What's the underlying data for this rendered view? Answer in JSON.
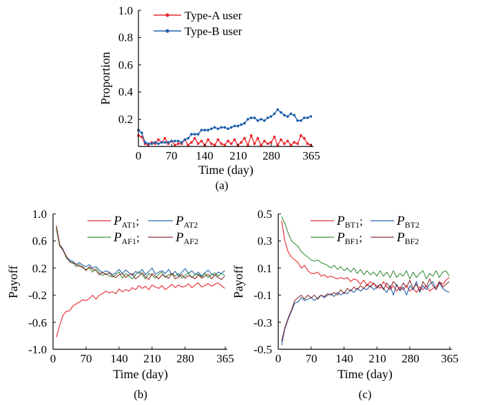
{
  "chart_data": [
    {
      "type": "line",
      "caption": "(a)",
      "xlabel": "Time (day)",
      "ylabel": "Proportion",
      "xlim": [
        0,
        365
      ],
      "ylim": [
        0,
        1.0
      ],
      "x_ticks": [
        "0",
        "70",
        "140",
        "210",
        "280",
        "365"
      ],
      "y_ticks": [
        "0.2",
        "0.4",
        "0.6",
        "0.8",
        "1.0"
      ],
      "legend_position": "top-center",
      "grid": false,
      "x": [
        0,
        7,
        14,
        21,
        28,
        35,
        42,
        49,
        56,
        63,
        70,
        77,
        84,
        91,
        98,
        105,
        112,
        119,
        126,
        133,
        140,
        147,
        154,
        161,
        168,
        175,
        182,
        189,
        196,
        203,
        210,
        217,
        224,
        231,
        238,
        245,
        252,
        259,
        266,
        273,
        280,
        287,
        294,
        301,
        308,
        315,
        322,
        329,
        336,
        343,
        350,
        357,
        364
      ],
      "series": [
        {
          "name": "Type-A user",
          "color": "#e8262b",
          "marker": "dot",
          "values": [
            0.08,
            0.07,
            0.02,
            0.01,
            0.03,
            0.02,
            0.05,
            0.03,
            0.06,
            0.02,
            0.04,
            0.01,
            0.02,
            0.02,
            0.05,
            0.01,
            0.03,
            0.06,
            0.02,
            0.04,
            0.01,
            0.05,
            0.02,
            0.01,
            0.05,
            0.02,
            0.01,
            0.04,
            0.02,
            0.05,
            0.01,
            0.03,
            0.06,
            0.01,
            0.08,
            0.02,
            0.06,
            0.01,
            0.04,
            0.02,
            0.03,
            0.07,
            0.01,
            0.05,
            0.02,
            0.04,
            0.01,
            0.03,
            0.02,
            0.08,
            0.06,
            0.02,
            0.01
          ]
        },
        {
          "name": "Type-B user",
          "color": "#1f5fad",
          "marker": "dot",
          "values": [
            0.12,
            0.1,
            0.03,
            0.02,
            0.02,
            0.03,
            0.02,
            0.03,
            0.03,
            0.03,
            0.04,
            0.04,
            0.04,
            0.03,
            0.05,
            0.06,
            0.09,
            0.09,
            0.09,
            0.12,
            0.12,
            0.12,
            0.13,
            0.14,
            0.13,
            0.14,
            0.14,
            0.13,
            0.14,
            0.15,
            0.15,
            0.16,
            0.17,
            0.2,
            0.21,
            0.21,
            0.19,
            0.2,
            0.19,
            0.21,
            0.22,
            0.24,
            0.27,
            0.25,
            0.23,
            0.22,
            0.24,
            0.23,
            0.19,
            0.19,
            0.21,
            0.21,
            0.22
          ]
        }
      ]
    },
    {
      "type": "line",
      "caption": "(b)",
      "xlabel": "Time (day)",
      "ylabel": "Payoff",
      "xlim": [
        0,
        365
      ],
      "ylim": [
        -1.0,
        1.0
      ],
      "x_ticks": [
        "0",
        "70",
        "140",
        "210",
        "280",
        "365"
      ],
      "y_ticks": [
        "-1.0",
        "-0.6",
        "-0.2",
        "0.2",
        "0.6",
        "1.0"
      ],
      "legend_position": "top-right",
      "grid": false,
      "x": [
        7,
        14,
        21,
        28,
        35,
        42,
        49,
        56,
        63,
        70,
        77,
        84,
        91,
        98,
        105,
        112,
        119,
        126,
        133,
        140,
        147,
        154,
        161,
        168,
        175,
        182,
        189,
        196,
        203,
        210,
        217,
        224,
        231,
        238,
        245,
        252,
        259,
        266,
        273,
        280,
        287,
        294,
        301,
        308,
        315,
        322,
        329,
        336,
        343,
        350,
        357,
        364
      ],
      "series": [
        {
          "name": "AT1",
          "color": "#e8262b",
          "values": [
            -0.82,
            -0.65,
            -0.5,
            -0.44,
            -0.43,
            -0.36,
            -0.33,
            -0.3,
            -0.27,
            -0.28,
            -0.25,
            -0.2,
            -0.26,
            -0.2,
            -0.18,
            -0.14,
            -0.17,
            -0.15,
            -0.18,
            -0.11,
            -0.15,
            -0.12,
            -0.14,
            -0.09,
            -0.12,
            -0.06,
            -0.1,
            -0.07,
            -0.12,
            -0.05,
            -0.08,
            -0.1,
            -0.06,
            -0.12,
            -0.08,
            -0.04,
            -0.09,
            -0.05,
            -0.08,
            -0.07,
            -0.03,
            -0.09,
            -0.05,
            -0.02,
            -0.08,
            -0.06,
            -0.03,
            -0.07,
            -0.04,
            -0.02,
            -0.06,
            -0.1
          ]
        },
        {
          "name": "AT2",
          "color": "#1f5fad",
          "values": [
            0.8,
            0.55,
            0.48,
            0.37,
            0.32,
            0.3,
            0.25,
            0.28,
            0.24,
            0.22,
            0.25,
            0.2,
            0.22,
            0.17,
            0.13,
            0.16,
            0.14,
            0.1,
            0.13,
            0.18,
            0.12,
            0.17,
            0.13,
            0.09,
            0.15,
            0.12,
            0.18,
            0.1,
            0.15,
            0.2,
            0.11,
            0.14,
            0.16,
            0.12,
            0.18,
            0.1,
            0.15,
            0.08,
            0.14,
            0.19,
            0.12,
            0.16,
            0.1,
            0.14,
            0.08,
            0.13,
            0.17,
            0.11,
            0.09,
            0.14,
            0.12,
            0.16
          ]
        },
        {
          "name": "AF1",
          "color": "#3a8c3a",
          "values": [
            0.78,
            0.52,
            0.47,
            0.35,
            0.3,
            0.28,
            0.22,
            0.25,
            0.2,
            0.18,
            0.2,
            0.14,
            0.19,
            0.13,
            0.09,
            0.12,
            0.08,
            0.07,
            0.1,
            0.14,
            0.05,
            0.12,
            0.08,
            0.04,
            0.1,
            0.15,
            0.1,
            0.04,
            0.12,
            0.09,
            0.05,
            0.11,
            0.14,
            0.06,
            0.1,
            0.12,
            0.08,
            0.12,
            0.05,
            0.09,
            0.13,
            0.06,
            0.1,
            0.11,
            0.07,
            0.12,
            0.06,
            0.1,
            0.13,
            0.08,
            0.12,
            0.09
          ]
        },
        {
          "name": "AF2",
          "color": "#8b2d2d",
          "values": [
            0.83,
            0.55,
            0.46,
            0.38,
            0.29,
            0.27,
            0.26,
            0.22,
            0.22,
            0.16,
            0.22,
            0.18,
            0.16,
            0.1,
            0.14,
            0.1,
            0.13,
            0.08,
            0.06,
            0.1,
            0.12,
            0.06,
            0.1,
            0.12,
            0.04,
            0.08,
            0.13,
            0.07,
            0.03,
            0.12,
            0.08,
            0.04,
            0.1,
            0.08,
            0.05,
            0.12,
            0.04,
            0.07,
            0.1,
            0.05,
            0.09,
            0.07,
            0.04,
            0.1,
            0.05,
            0.08,
            0.11,
            0.04,
            0.1,
            0.06,
            0.03,
            0.08
          ]
        }
      ]
    },
    {
      "type": "line",
      "caption": "(c)",
      "xlabel": "Time (day)",
      "ylabel": "Payoff",
      "xlim": [
        0,
        365
      ],
      "ylim": [
        -0.5,
        0.5
      ],
      "x_ticks": [
        "0",
        "70",
        "140",
        "210",
        "280",
        "365"
      ],
      "y_ticks": [
        "-0.5",
        "-0.3",
        "-0.1",
        "0.1",
        "0.3",
        "0.5"
      ],
      "legend_position": "top-right",
      "grid": false,
      "x": [
        7,
        14,
        21,
        28,
        35,
        42,
        49,
        56,
        63,
        70,
        77,
        84,
        91,
        98,
        105,
        112,
        119,
        126,
        133,
        140,
        147,
        154,
        161,
        168,
        175,
        182,
        189,
        196,
        203,
        210,
        217,
        224,
        231,
        238,
        245,
        252,
        259,
        266,
        273,
        280,
        287,
        294,
        301,
        308,
        315,
        322,
        329,
        336,
        343,
        350,
        357,
        364
      ],
      "series": [
        {
          "name": "BT1",
          "color": "#e8262b",
          "values": [
            0.45,
            0.3,
            0.22,
            0.18,
            0.16,
            0.14,
            0.1,
            0.12,
            0.08,
            0.06,
            0.06,
            0.07,
            0.04,
            0.05,
            0.03,
            0.04,
            0.03,
            0.02,
            0.03,
            0.02,
            0.03,
            0.0,
            0.02,
            0.01,
            -0.02,
            0.01,
            -0.03,
            0.0,
            -0.02,
            -0.03,
            -0.05,
            0.0,
            -0.04,
            -0.06,
            -0.03,
            -0.07,
            -0.04,
            -0.06,
            -0.03,
            -0.07,
            -0.05,
            -0.08,
            -0.04,
            -0.06,
            -0.03,
            -0.07,
            -0.05,
            -0.04,
            0.0,
            -0.02,
            0.01,
            0.03
          ]
        },
        {
          "name": "BT2",
          "color": "#1f5fad",
          "values": [
            -0.47,
            -0.35,
            -0.28,
            -0.22,
            -0.16,
            -0.15,
            -0.12,
            -0.14,
            -0.13,
            -0.12,
            -0.14,
            -0.12,
            -0.1,
            -0.12,
            -0.1,
            -0.09,
            -0.11,
            -0.08,
            -0.1,
            -0.08,
            -0.09,
            -0.06,
            -0.08,
            -0.05,
            -0.07,
            -0.05,
            -0.06,
            -0.03,
            -0.06,
            -0.04,
            -0.02,
            -0.05,
            -0.08,
            -0.03,
            -0.1,
            -0.02,
            -0.07,
            -0.04,
            -0.1,
            -0.03,
            -0.06,
            0.0,
            -0.08,
            -0.03,
            -0.06,
            -0.02,
            0.0,
            -0.06,
            -0.01,
            -0.05,
            -0.07,
            -0.08
          ]
        },
        {
          "name": "BF1",
          "color": "#3a8c3a",
          "values": [
            0.48,
            0.43,
            0.36,
            0.3,
            0.28,
            0.26,
            0.22,
            0.2,
            0.18,
            0.16,
            0.15,
            0.16,
            0.14,
            0.13,
            0.12,
            0.1,
            0.12,
            0.09,
            0.11,
            0.08,
            0.1,
            0.07,
            0.1,
            0.06,
            0.09,
            0.05,
            0.08,
            0.05,
            0.07,
            0.04,
            0.08,
            0.04,
            0.07,
            0.03,
            0.08,
            0.03,
            0.06,
            0.04,
            0.08,
            0.02,
            0.07,
            0.03,
            0.06,
            0.08,
            0.02,
            0.06,
            0.04,
            0.08,
            0.03,
            0.07,
            0.08,
            0.04
          ]
        },
        {
          "name": "BF2",
          "color": "#8b2d2d",
          "values": [
            -0.44,
            -0.34,
            -0.27,
            -0.21,
            -0.14,
            -0.12,
            -0.1,
            -0.13,
            -0.1,
            -0.12,
            -0.1,
            -0.13,
            -0.1,
            -0.11,
            -0.09,
            -0.1,
            -0.08,
            -0.1,
            -0.06,
            -0.09,
            -0.05,
            -0.07,
            -0.04,
            -0.06,
            -0.03,
            -0.05,
            -0.02,
            -0.04,
            -0.01,
            -0.05,
            -0.02,
            -0.06,
            -0.01,
            -0.05,
            0.0,
            -0.03,
            -0.06,
            -0.01,
            -0.04,
            0.01,
            -0.05,
            -0.02,
            -0.07,
            0.0,
            -0.04,
            0.02,
            -0.03,
            -0.06,
            0.0,
            -0.04,
            -0.02,
            0.0
          ]
        }
      ]
    }
  ]
}
